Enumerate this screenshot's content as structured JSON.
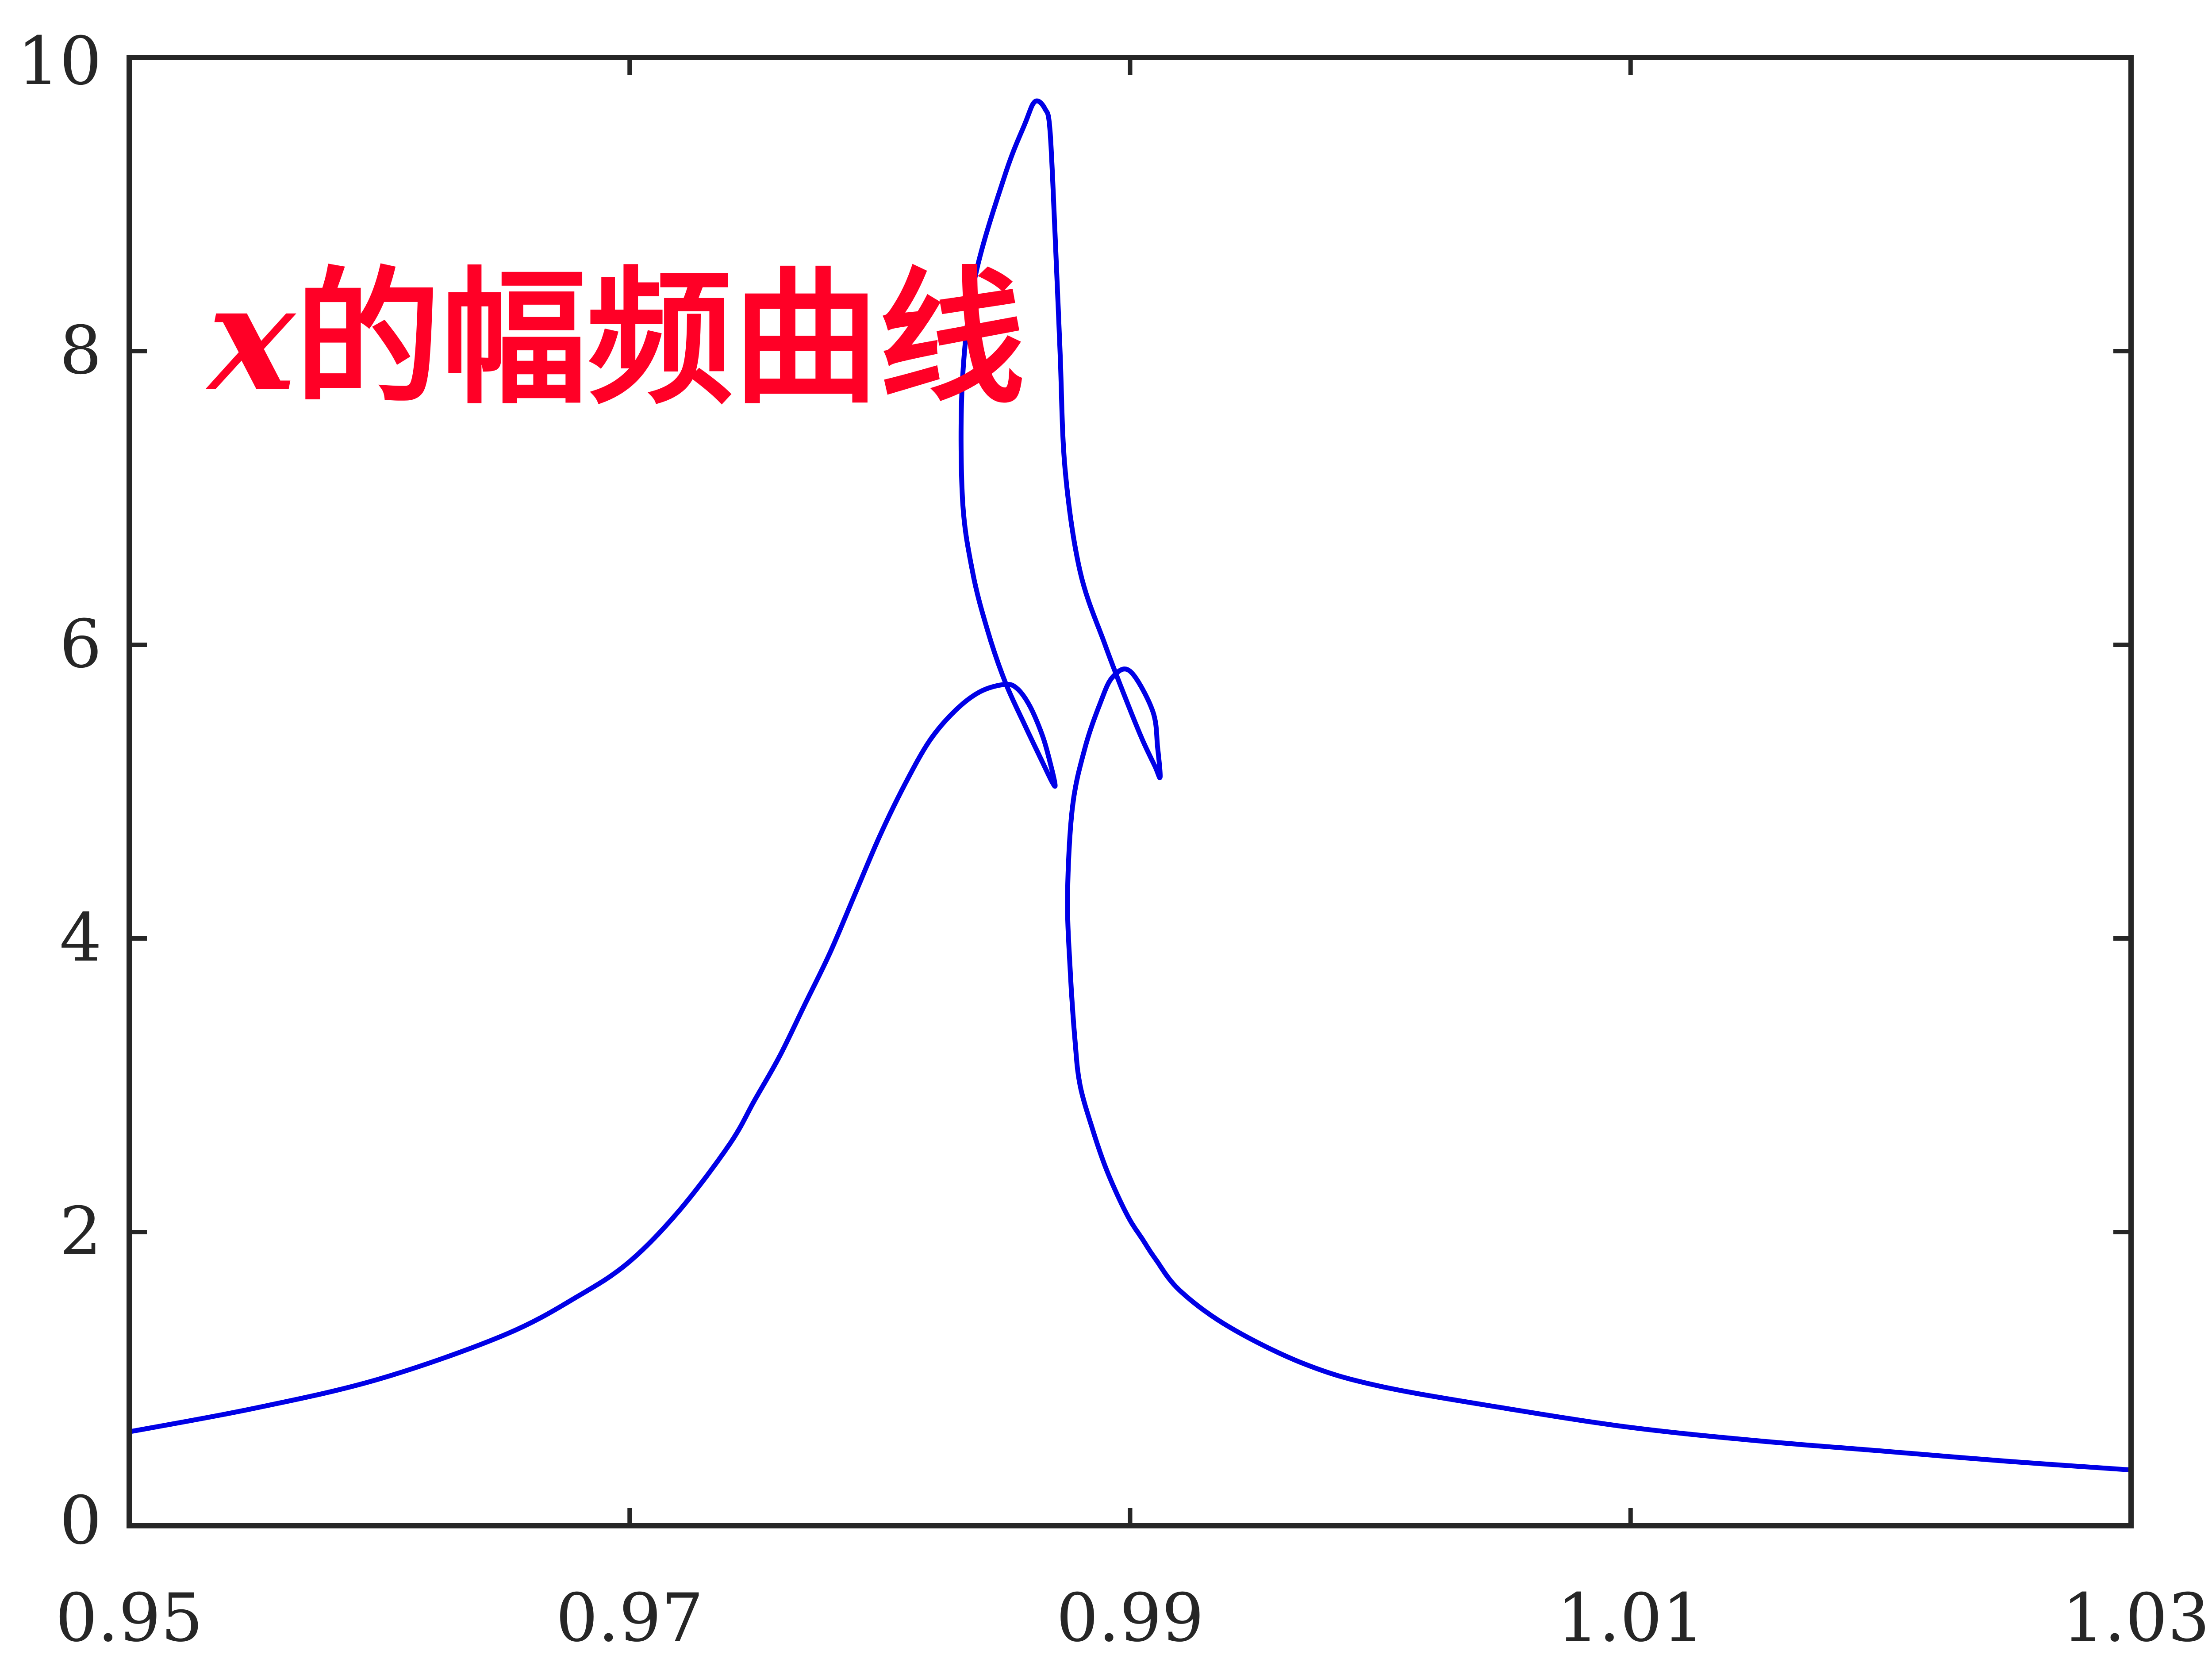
{
  "chart_data": {
    "type": "line",
    "title": "",
    "xlabel": "",
    "ylabel": "",
    "xlim": [
      0.95,
      1.03
    ],
    "ylim": [
      0,
      10
    ],
    "xticks": [
      0.95,
      0.97,
      0.99,
      1.01,
      1.03
    ],
    "xtick_labels": [
      "0.95",
      "0.97",
      "0.99",
      "1.01",
      "1.03"
    ],
    "yticks": [
      0,
      2,
      4,
      6,
      8,
      10
    ],
    "ytick_labels": [
      "0",
      "2",
      "4",
      "6",
      "8",
      "10"
    ],
    "grid": false,
    "annotation": {
      "variable": "x",
      "text": "的幅频曲线",
      "color": "#ff0026"
    },
    "series": [
      {
        "color": "#0000e6",
        "x": [
          0.95,
          0.955,
          0.96,
          0.965,
          0.968,
          0.97,
          0.972,
          0.974,
          0.975,
          0.976,
          0.977,
          0.978,
          0.979,
          0.98,
          0.981,
          0.982,
          0.983,
          0.984,
          0.985,
          0.9855,
          0.986,
          0.9865,
          0.9868,
          0.987,
          0.9869,
          0.9865,
          0.9858,
          0.985,
          0.9843,
          0.9837,
          0.9833,
          0.9833,
          0.9838,
          0.985,
          0.9858,
          0.9862,
          0.9866,
          0.9868,
          0.987,
          0.9872,
          0.9874,
          0.988,
          0.989,
          0.9899,
          0.9905,
          0.991,
          0.9912,
          0.9911,
          0.9909,
          0.99,
          0.9893,
          0.9888,
          0.9882,
          0.9877,
          0.9875,
          0.9876,
          0.9878,
          0.988,
          0.9885,
          0.989,
          0.9895,
          0.99,
          0.9905,
          0.991,
          0.992,
          0.994,
          0.997,
          1.0,
          1.005,
          1.01,
          1.015,
          1.02,
          1.025,
          1.03
        ],
        "y": [
          0.64,
          0.8,
          1.0,
          1.3,
          1.57,
          1.8,
          2.15,
          2.6,
          2.9,
          3.2,
          3.55,
          3.9,
          4.3,
          4.7,
          5.05,
          5.35,
          5.55,
          5.68,
          5.73,
          5.7,
          5.58,
          5.38,
          5.2,
          5.05,
          5.06,
          5.2,
          5.45,
          5.75,
          6.1,
          6.5,
          7.0,
          7.8,
          8.5,
          9.2,
          9.55,
          9.7,
          9.65,
          9.5,
          8.8,
          8.0,
          7.2,
          6.5,
          6.0,
          5.6,
          5.35,
          5.17,
          5.1,
          5.3,
          5.55,
          5.82,
          5.78,
          5.6,
          5.3,
          4.9,
          4.3,
          3.8,
          3.3,
          3.0,
          2.7,
          2.45,
          2.25,
          2.08,
          1.95,
          1.82,
          1.6,
          1.35,
          1.1,
          0.95,
          0.8,
          0.67,
          0.58,
          0.51,
          0.44,
          0.38
        ]
      }
    ]
  }
}
